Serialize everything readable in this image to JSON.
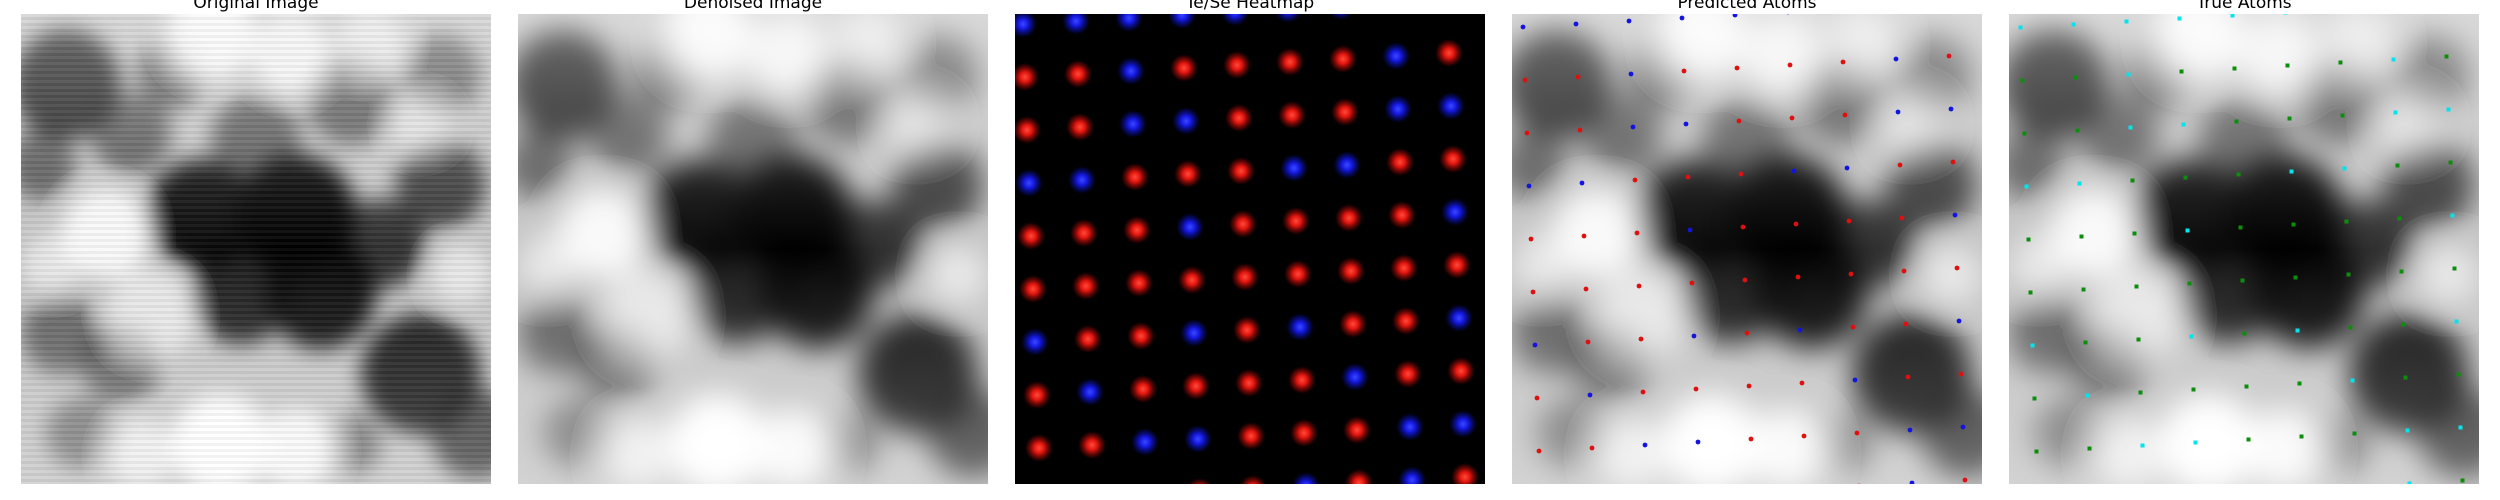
{
  "figure": {
    "panels": [
      {
        "title": "Original Image"
      },
      {
        "title": "Denoised Image"
      },
      {
        "title": "Te/Se Heatmap"
      },
      {
        "title": "Predicted Atoms"
      },
      {
        "title": "True Atoms"
      }
    ]
  },
  "colors": {
    "te": "#e01010",
    "se": "#1414e0",
    "true_a": "#0b8f0b",
    "true_b": "#00e5ee",
    "heatmap_background": "#000000"
  }
}
